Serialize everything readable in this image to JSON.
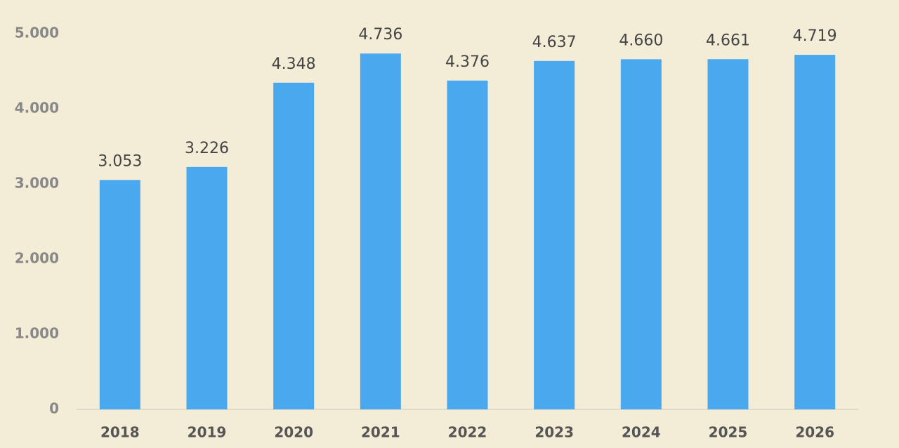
{
  "chart_data": {
    "type": "bar",
    "categories": [
      "2018",
      "2019",
      "2020",
      "2021",
      "2022",
      "2023",
      "2024",
      "2025",
      "2026"
    ],
    "values": [
      3053,
      3226,
      4348,
      4736,
      4376,
      4637,
      4660,
      4661,
      4719
    ],
    "value_labels": [
      "3.053",
      "3.226",
      "4.348",
      "4.736",
      "4.376",
      "4.637",
      "4.660",
      "4.661",
      "4.719"
    ],
    "color": "#4aa8ef",
    "ylim": [
      0,
      5000
    ],
    "yticks": [
      0,
      {
        "value": 1000,
        "label": "1.000"
      },
      {
        "value": 2000,
        "label": "2.000"
      },
      {
        "value": 3000,
        "label": "3.000"
      },
      {
        "value": 4000,
        "label": "4.000"
      },
      {
        "value": 5000,
        "label": "5.000"
      }
    ],
    "grid": false
  }
}
